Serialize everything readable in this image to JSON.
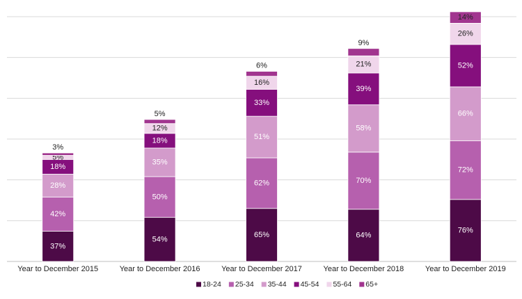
{
  "chart_data": {
    "type": "bar",
    "stacked": true,
    "title": "",
    "xlabel": "",
    "ylabel": "",
    "ylim": [
      0,
      300
    ],
    "grid": true,
    "legend_position": "bottom",
    "categories": [
      "Year to December 2015",
      "Year to December 2016",
      "Year to December 2017",
      "Year to December 2018",
      "Year to December 2019"
    ],
    "series": [
      {
        "name": "18-24",
        "color": "#4d0a47",
        "label_color": "#ffffff",
        "values": [
          37,
          54,
          65,
          64,
          76
        ],
        "labels": [
          "37%",
          "54%",
          "65%",
          "64%",
          "76%"
        ]
      },
      {
        "name": "25-34",
        "color": "#b660ae",
        "label_color": "#ffffff",
        "values": [
          42,
          50,
          62,
          70,
          72
        ],
        "labels": [
          "42%",
          "50%",
          "62%",
          "70%",
          "72%"
        ]
      },
      {
        "name": "35-44",
        "color": "#d39bcb",
        "label_color": "#ffffff",
        "values": [
          28,
          35,
          51,
          58,
          66
        ],
        "labels": [
          "28%",
          "35%",
          "51%",
          "58%",
          "66%"
        ]
      },
      {
        "name": "45-54",
        "color": "#850f7d",
        "label_color": "#ffffff",
        "values": [
          18,
          18,
          33,
          39,
          52
        ],
        "labels": [
          "18%",
          "18%",
          "33%",
          "39%",
          "52%"
        ]
      },
      {
        "name": "55-64",
        "color": "#f0d6eb",
        "label_color": "#222222",
        "values": [
          5,
          12,
          16,
          21,
          26
        ],
        "labels": [
          "5%",
          "12%",
          "16%",
          "21%",
          "26%"
        ]
      },
      {
        "name": "65+",
        "color": "#a1358f",
        "label_color": "#222222",
        "values": [
          3,
          5,
          6,
          9,
          14
        ],
        "labels": [
          "3%",
          "5%",
          "6%",
          "9%",
          "14%"
        ]
      }
    ]
  }
}
